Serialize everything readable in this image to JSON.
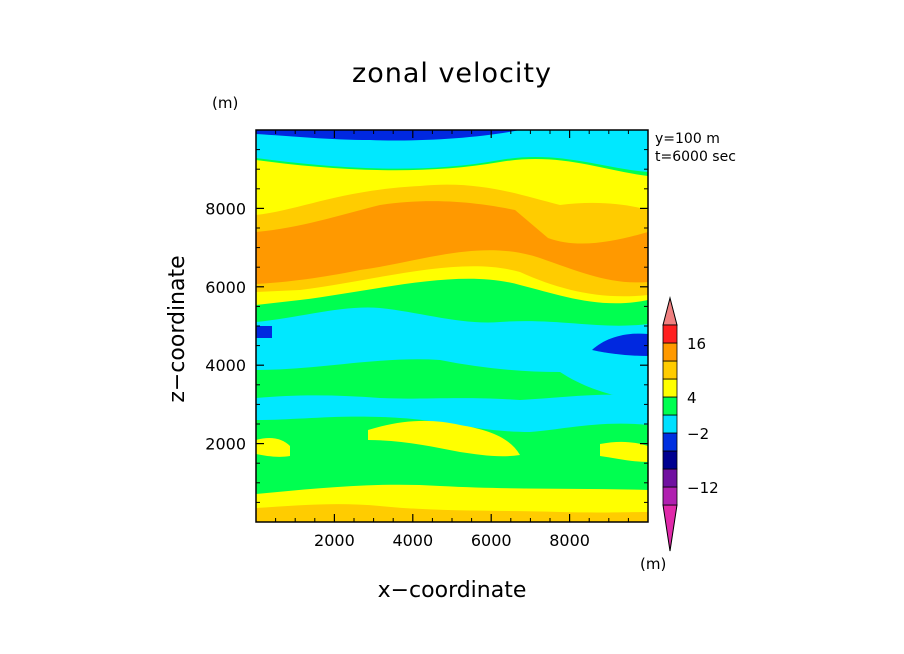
{
  "chart_data": {
    "type": "heatmap",
    "title": "zonal velocity",
    "xlabel": "x−coordinate",
    "ylabel": "z−coordinate",
    "y_unit": "(m)",
    "colorbar_unit": "(m)",
    "annotations": [
      "y=100 m",
      "t=6000 sec"
    ],
    "xlim": [
      0,
      10000
    ],
    "ylim": [
      0,
      10000
    ],
    "x_ticks": [
      2000,
      4000,
      6000,
      8000
    ],
    "y_ticks": [
      2000,
      4000,
      6000,
      8000
    ],
    "x_tick_labels": [
      "2000",
      "4000",
      "6000",
      "8000"
    ],
    "y_tick_labels": [
      "2000",
      "4000",
      "6000",
      "8000"
    ],
    "colorbar": {
      "colors": [
        "#e02aaa",
        "#b020b0",
        "#7010a0",
        "#000090",
        "#0030e0",
        "#00e0ff",
        "#00ff50",
        "#ffff00",
        "#ffcc00",
        "#ff9900",
        "#ff2020",
        "#f08080"
      ],
      "tick_labels": [
        "−12",
        "−2",
        "4",
        "16"
      ],
      "extend": "both"
    },
    "palette": {
      "blue": "#0028e0",
      "cyan": "#00e8ff",
      "green": "#00ff50",
      "yellow": "#ffff00",
      "gold": "#ffcc00",
      "orange": "#ff9900"
    }
  }
}
